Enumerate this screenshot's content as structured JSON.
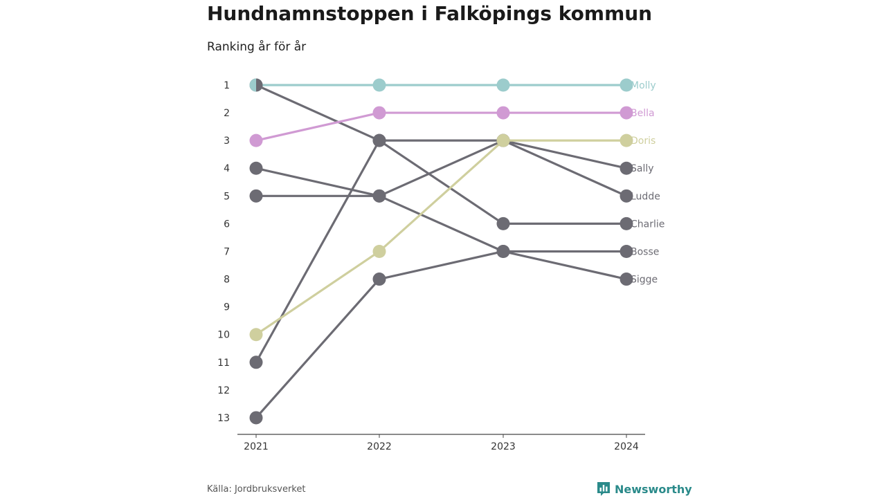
{
  "title": "Hundnamnstoppen i Falköpings kommun",
  "subtitle": "Ranking år för år",
  "source": "Källa: Jordbruksverket",
  "brand": "Newsworthy",
  "chart_data": {
    "type": "line",
    "subtype": "bump",
    "x": [
      "2021",
      "2022",
      "2023",
      "2024"
    ],
    "y_ticks": [
      1,
      2,
      3,
      4,
      5,
      6,
      7,
      8,
      9,
      10,
      11,
      12,
      13
    ],
    "ylim": [
      1,
      13
    ],
    "y_reversed": true,
    "grid": false,
    "legend": "end-labels-right",
    "series": [
      {
        "name": "Molly",
        "color": "#9ccccc",
        "values": [
          1,
          1,
          1,
          1
        ]
      },
      {
        "name": "Bella",
        "color": "#d09ad3",
        "values": [
          3,
          2,
          2,
          2
        ]
      },
      {
        "name": "Doris",
        "color": "#cfcf9e",
        "values": [
          10,
          7,
          3,
          3
        ]
      },
      {
        "name": "Sally",
        "color": "#6c6b73",
        "values": [
          5,
          5,
          3,
          4
        ]
      },
      {
        "name": "Ludde",
        "color": "#6c6b73",
        "values": [
          11,
          3,
          3,
          5
        ]
      },
      {
        "name": "Charlie",
        "color": "#6c6b73",
        "values": [
          1,
          3,
          6,
          6
        ]
      },
      {
        "name": "Bosse",
        "color": "#6c6b73",
        "values": [
          4,
          5,
          7,
          7
        ]
      },
      {
        "name": "Sigge",
        "color": "#6c6b73",
        "values": [
          13,
          8,
          7,
          8
        ]
      }
    ]
  },
  "colors": {
    "brand": "#2a8a8a",
    "axis": "#444444",
    "gray": "#6c6b73"
  }
}
